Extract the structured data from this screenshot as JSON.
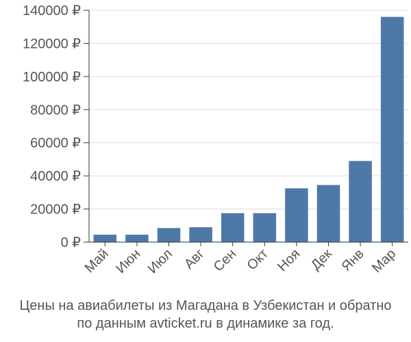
{
  "chart_data": {
    "type": "bar",
    "categories": [
      "Май",
      "Июн",
      "Июл",
      "Авг",
      "Сен",
      "Окт",
      "Ноя",
      "Дек",
      "Янв",
      "Мар"
    ],
    "values": [
      4500,
      4500,
      8500,
      9000,
      17500,
      17500,
      32500,
      34500,
      49000,
      136000
    ],
    "yticks": [
      0,
      20000,
      40000,
      60000,
      80000,
      100000,
      120000,
      140000
    ],
    "ytick_suffix": " ₽",
    "ylim": [
      0,
      140000
    ],
    "grid": true,
    "bar_color": "#4e79a7",
    "grid_color": "#dddddd",
    "text_color": "#555555"
  },
  "caption": {
    "line1": "Цены на авиабилеты из Магадана в Узбекистан и обратно",
    "line2": "по данным avticket.ru в динамике за год."
  }
}
